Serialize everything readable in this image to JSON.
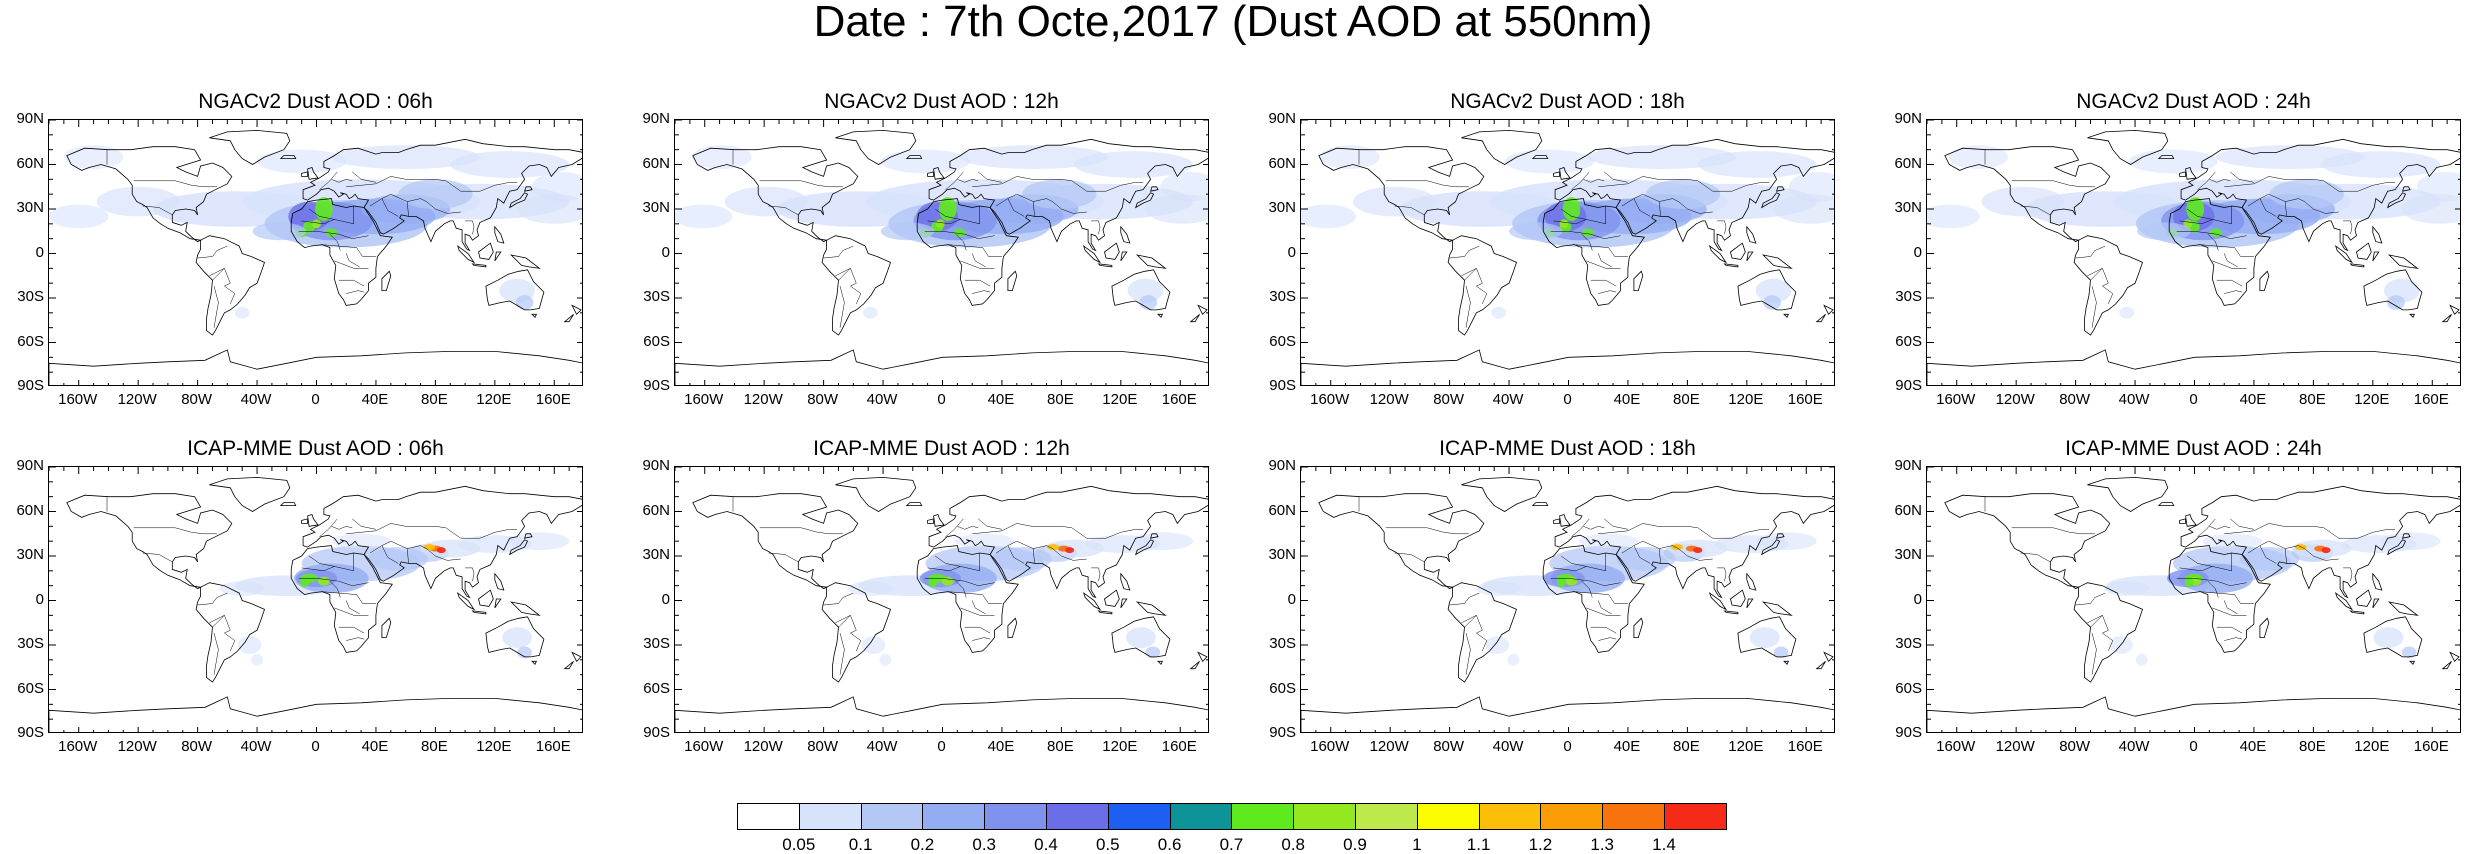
{
  "title": "Date : 7th Octe,2017 (Dust AOD at 550nm)",
  "panels": [
    {
      "title": "NGACv2 Dust AOD : 06h",
      "model": "ngac"
    },
    {
      "title": "NGACv2 Dust AOD : 12h",
      "model": "ngac"
    },
    {
      "title": "NGACv2 Dust AOD : 18h",
      "model": "ngac"
    },
    {
      "title": "NGACv2 Dust AOD : 24h",
      "model": "ngac"
    },
    {
      "title": "ICAP-MME Dust AOD : 06h",
      "model": "icap"
    },
    {
      "title": "ICAP-MME Dust AOD : 12h",
      "model": "icap"
    },
    {
      "title": "ICAP-MME Dust AOD : 18h",
      "model": "icap"
    },
    {
      "title": "ICAP-MME Dust AOD : 24h",
      "model": "icap"
    }
  ],
  "lat_ticks": [
    "90N",
    "60N",
    "30N",
    "0",
    "30S",
    "60S",
    "90S"
  ],
  "lon_ticks": [
    "160W",
    "120W",
    "80W",
    "40W",
    "0",
    "40E",
    "80E",
    "120E",
    "160E"
  ],
  "colorbar": {
    "labels": [
      "0.05",
      "0.1",
      "0.2",
      "0.3",
      "0.4",
      "0.5",
      "0.6",
      "0.7",
      "0.8",
      "0.9",
      "1",
      "1.1",
      "1.2",
      "1.3",
      "1.4"
    ],
    "colors": [
      "#ffffff",
      "#d7e2fb",
      "#b4c8f6",
      "#94acf2",
      "#7f92ee",
      "#6a6ee8",
      "#1d5ff0",
      "#0e9498",
      "#5fea1e",
      "#93e81f",
      "#bde94a",
      "#fdfd02",
      "#fbbf0a",
      "#fa9d07",
      "#f8730d",
      "#f52a18"
    ]
  },
  "map_colors": {
    "coast": "#000000",
    "frame": "#000000"
  }
}
